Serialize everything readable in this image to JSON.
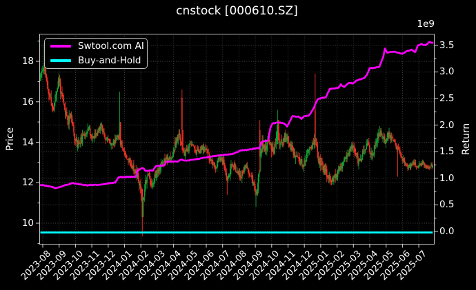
{
  "page": {
    "background": "#000000"
  },
  "chart_data": {
    "type": "candlestick+line",
    "title": "cnstock [000610.SZ]",
    "grid": {
      "visible": true,
      "style": "dotted",
      "color": "#4e4e4e"
    },
    "colors": {
      "background": "#000000",
      "text": "#ffffff",
      "spine": "#c4c4c4",
      "candle_up": "#12a235",
      "candle_down": "#ef3125",
      "ai_line": "#ff00ff",
      "buy_and_hold_line": "#00ffff"
    },
    "left_axis": {
      "label": "Price",
      "tick_labels": [
        "10",
        "12",
        "14",
        "16",
        "18"
      ],
      "tick_values": [
        10,
        12,
        14,
        16,
        18
      ],
      "minor_tick_values": [
        9,
        11,
        13,
        15,
        17,
        19
      ]
    },
    "right_axis": {
      "label": "Return",
      "offset_text": "1e9",
      "tick_labels": [
        "0.0",
        "0.5",
        "1.0",
        "1.5",
        "2.0",
        "2.5",
        "3.0",
        "3.5"
      ],
      "tick_values": [
        0.0,
        0.5,
        1.0,
        1.5,
        2.0,
        2.5,
        3.0,
        3.5
      ]
    },
    "x_axis": {
      "tick_labels": [
        "2023-08",
        "2023-09",
        "2023-10",
        "2023-11",
        "2023-12",
        "2024-01",
        "2024-02",
        "2024-03",
        "2024-04",
        "2024-05",
        "2024-06",
        "2024-07",
        "2024-08",
        "2024-09",
        "2024-10",
        "2024-11",
        "2024-12",
        "2025-01",
        "2025-02",
        "2025-03",
        "2025-04",
        "2025-05",
        "2025-06",
        "2025-07"
      ]
    },
    "legend": {
      "items": [
        {
          "label": "Swtool.com AI",
          "color": "#ff00ff"
        },
        {
          "label": "Buy-and-Hold",
          "color": "#00ffff"
        }
      ]
    },
    "series": {
      "price_candles": {
        "name": "OHLC price",
        "bars_per_month": 21,
        "m_start": -0.15,
        "m_end": 23.85,
        "keyframes_close": [
          [
            -0.15,
            17.2
          ],
          [
            0.0,
            17.6
          ],
          [
            0.1,
            17.9
          ],
          [
            0.25,
            16.8
          ],
          [
            0.5,
            16.0
          ],
          [
            0.65,
            15.6
          ],
          [
            0.85,
            16.6
          ],
          [
            1.0,
            17.1
          ],
          [
            1.15,
            16.3
          ],
          [
            1.35,
            15.6
          ],
          [
            1.55,
            15.0
          ],
          [
            1.7,
            15.5
          ],
          [
            1.9,
            14.4
          ],
          [
            2.1,
            13.9
          ],
          [
            2.35,
            14.1
          ],
          [
            2.6,
            14.5
          ],
          [
            2.8,
            14.7
          ],
          [
            3.0,
            14.2
          ],
          [
            3.3,
            14.4
          ],
          [
            3.55,
            14.9
          ],
          [
            3.8,
            14.3
          ],
          [
            4.0,
            14.1
          ],
          [
            4.3,
            13.9
          ],
          [
            4.6,
            14.4
          ],
          [
            4.9,
            13.7
          ],
          [
            5.2,
            13.2
          ],
          [
            5.5,
            12.8
          ],
          [
            5.85,
            12.2
          ],
          [
            6.0,
            11.5
          ],
          [
            6.1,
            10.8
          ],
          [
            6.25,
            12.0
          ],
          [
            6.45,
            12.5
          ],
          [
            6.65,
            11.9
          ],
          [
            6.85,
            12.3
          ],
          [
            7.1,
            12.7
          ],
          [
            7.4,
            13.1
          ],
          [
            7.6,
            13.3
          ],
          [
            7.85,
            13.1
          ],
          [
            8.1,
            13.9
          ],
          [
            8.35,
            14.4
          ],
          [
            8.6,
            13.4
          ],
          [
            8.85,
            13.6
          ],
          [
            9.1,
            14.0
          ],
          [
            9.4,
            13.5
          ],
          [
            9.7,
            13.7
          ],
          [
            10.0,
            13.6
          ],
          [
            10.3,
            13.0
          ],
          [
            10.55,
            12.7
          ],
          [
            10.8,
            13.2
          ],
          [
            11.05,
            13.0
          ],
          [
            11.3,
            12.1
          ],
          [
            11.55,
            12.9
          ],
          [
            11.8,
            12.7
          ],
          [
            12.1,
            12.3
          ],
          [
            12.4,
            12.8
          ],
          [
            12.7,
            12.4
          ],
          [
            12.95,
            11.7
          ],
          [
            13.1,
            11.5
          ],
          [
            13.25,
            12.5
          ],
          [
            13.4,
            14.0
          ],
          [
            13.6,
            13.6
          ],
          [
            13.85,
            14.1
          ],
          [
            14.1,
            13.5
          ],
          [
            14.35,
            14.5
          ],
          [
            14.55,
            13.9
          ],
          [
            14.8,
            14.3
          ],
          [
            15.1,
            13.9
          ],
          [
            15.4,
            13.4
          ],
          [
            15.7,
            13.0
          ],
          [
            15.95,
            12.9
          ],
          [
            16.2,
            13.4
          ],
          [
            16.45,
            13.9
          ],
          [
            16.6,
            14.1
          ],
          [
            16.7,
            13.9
          ],
          [
            16.85,
            13.2
          ],
          [
            17.1,
            12.8
          ],
          [
            17.4,
            12.4
          ],
          [
            17.75,
            12.1
          ],
          [
            18.0,
            12.4
          ],
          [
            18.3,
            12.9
          ],
          [
            18.6,
            13.4
          ],
          [
            18.9,
            13.8
          ],
          [
            19.1,
            13.5
          ],
          [
            19.3,
            13.0
          ],
          [
            19.6,
            13.5
          ],
          [
            19.9,
            13.9
          ],
          [
            20.15,
            13.3
          ],
          [
            20.45,
            14.2
          ],
          [
            20.65,
            14.5
          ],
          [
            20.9,
            14.1
          ],
          [
            21.15,
            14.4
          ],
          [
            21.45,
            14.0
          ],
          [
            21.75,
            13.6
          ],
          [
            22.05,
            13.1
          ],
          [
            22.35,
            12.7
          ],
          [
            22.65,
            13.0
          ],
          [
            22.95,
            12.8
          ],
          [
            23.25,
            13.0
          ],
          [
            23.55,
            12.7
          ],
          [
            23.85,
            12.9
          ]
        ],
        "volatility_keyframes": [
          [
            -0.15,
            0.3
          ],
          [
            1.0,
            0.32
          ],
          [
            2.0,
            0.26
          ],
          [
            3.5,
            0.2
          ],
          [
            4.5,
            0.22
          ],
          [
            5.5,
            0.22
          ],
          [
            6.0,
            0.34
          ],
          [
            6.5,
            0.26
          ],
          [
            7.5,
            0.24
          ],
          [
            9.0,
            0.22
          ],
          [
            10.5,
            0.2
          ],
          [
            11.5,
            0.24
          ],
          [
            12.5,
            0.2
          ],
          [
            13.2,
            0.3
          ],
          [
            14.0,
            0.3
          ],
          [
            15.0,
            0.26
          ],
          [
            16.0,
            0.24
          ],
          [
            16.6,
            0.28
          ],
          [
            17.5,
            0.26
          ],
          [
            18.5,
            0.24
          ],
          [
            19.5,
            0.24
          ],
          [
            20.5,
            0.26
          ],
          [
            21.5,
            0.22
          ],
          [
            22.3,
            0.16
          ],
          [
            23.0,
            0.13
          ],
          [
            23.85,
            0.13
          ]
        ],
        "spikes": [
          {
            "m": 0.07,
            "high": 18.9
          },
          {
            "m": 4.7,
            "high": 16.5,
            "open": 14.3,
            "close": 15.0
          },
          {
            "m": 6.1,
            "low": 9.35,
            "open": 11.7,
            "close": 10.3
          },
          {
            "m": 8.5,
            "high": 16.6,
            "open": 16.2,
            "close": 14.6
          },
          {
            "m": 11.3,
            "low": 11.4
          },
          {
            "m": 13.05,
            "low": 10.8
          },
          {
            "m": 13.3,
            "high": 15.1,
            "open": 14.6,
            "close": 13.3
          },
          {
            "m": 14.35,
            "high": 15.6,
            "open": 13.9,
            "close": 15.1
          },
          {
            "m": 16.68,
            "high": 17.4,
            "open": 15.6,
            "close": 14.2
          },
          {
            "m": 17.8,
            "low": 11.9
          },
          {
            "m": 20.6,
            "high": 14.8
          },
          {
            "m": 21.7,
            "low": 12.3
          }
        ]
      },
      "ai_line": {
        "name": "Swtool.com AI",
        "unit_multiplier": "1e9",
        "keyframes": [
          [
            -0.15,
            0.87
          ],
          [
            0.0,
            0.87
          ],
          [
            0.55,
            0.84
          ],
          [
            0.76,
            0.81
          ],
          [
            1.18,
            0.85
          ],
          [
            1.81,
            0.91
          ],
          [
            2.62,
            0.87
          ],
          [
            3.5,
            0.88
          ],
          [
            4.14,
            0.91
          ],
          [
            4.43,
            0.92
          ],
          [
            4.64,
            1.02
          ],
          [
            5.7,
            1.03
          ],
          [
            5.78,
            1.14
          ],
          [
            6.12,
            1.2
          ],
          [
            6.29,
            1.14
          ],
          [
            6.75,
            1.15
          ],
          [
            6.92,
            1.23
          ],
          [
            7.43,
            1.24
          ],
          [
            7.55,
            1.31
          ],
          [
            8.27,
            1.32
          ],
          [
            8.48,
            1.35
          ],
          [
            8.78,
            1.33
          ],
          [
            9.2,
            1.35
          ],
          [
            9.83,
            1.38
          ],
          [
            10.46,
            1.42
          ],
          [
            11.1,
            1.44
          ],
          [
            11.65,
            1.46
          ],
          [
            12.07,
            1.52
          ],
          [
            12.78,
            1.55
          ],
          [
            13.25,
            1.57
          ],
          [
            13.38,
            1.68
          ],
          [
            13.63,
            1.7
          ],
          [
            13.8,
            1.72
          ],
          [
            13.92,
            1.95
          ],
          [
            14.05,
            2.03
          ],
          [
            14.47,
            2.05
          ],
          [
            14.77,
            2.03
          ],
          [
            14.94,
            1.97
          ],
          [
            15.15,
            2.1
          ],
          [
            15.27,
            2.17
          ],
          [
            15.65,
            2.16
          ],
          [
            15.82,
            2.11
          ],
          [
            15.99,
            2.17
          ],
          [
            16.29,
            2.18
          ],
          [
            16.46,
            2.26
          ],
          [
            16.58,
            2.33
          ],
          [
            16.71,
            2.42
          ],
          [
            16.84,
            2.5
          ],
          [
            17.3,
            2.52
          ],
          [
            17.43,
            2.6
          ],
          [
            17.55,
            2.68
          ],
          [
            18.06,
            2.7
          ],
          [
            18.23,
            2.76
          ],
          [
            18.44,
            2.72
          ],
          [
            18.73,
            2.8
          ],
          [
            18.95,
            2.78
          ],
          [
            19.16,
            2.83
          ],
          [
            19.37,
            2.86
          ],
          [
            19.66,
            2.88
          ],
          [
            19.83,
            2.95
          ],
          [
            20.0,
            3.07
          ],
          [
            20.38,
            3.08
          ],
          [
            20.59,
            3.1
          ],
          [
            20.84,
            3.3
          ],
          [
            20.93,
            3.44
          ],
          [
            21.05,
            3.36
          ],
          [
            21.43,
            3.38
          ],
          [
            21.77,
            3.36
          ],
          [
            21.98,
            3.34
          ],
          [
            22.28,
            3.39
          ],
          [
            22.57,
            3.42
          ],
          [
            22.78,
            3.37
          ],
          [
            22.95,
            3.5
          ],
          [
            23.16,
            3.52
          ],
          [
            23.42,
            3.5
          ],
          [
            23.63,
            3.56
          ],
          [
            23.85,
            3.55
          ]
        ]
      },
      "buy_and_hold": {
        "name": "Buy-and-Hold",
        "value": 0.0
      }
    }
  }
}
